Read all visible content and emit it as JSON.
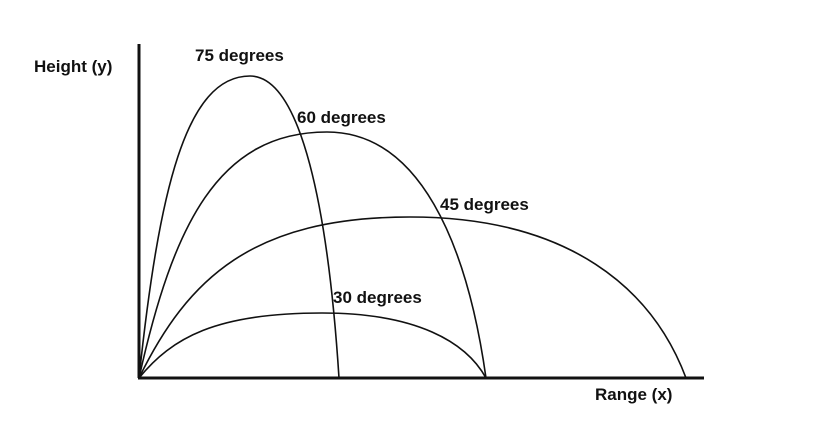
{
  "axes": {
    "y_label": "Height (y)",
    "x_label": "Range (x)"
  },
  "trajectories": [
    {
      "label": "75 degrees",
      "angle_deg": 75
    },
    {
      "label": "60 degrees",
      "angle_deg": 60
    },
    {
      "label": "45 degrees",
      "angle_deg": 45
    },
    {
      "label": "30 degrees",
      "angle_deg": 30
    }
  ],
  "colors": {
    "ink": "#111111",
    "background": "#ffffff"
  }
}
